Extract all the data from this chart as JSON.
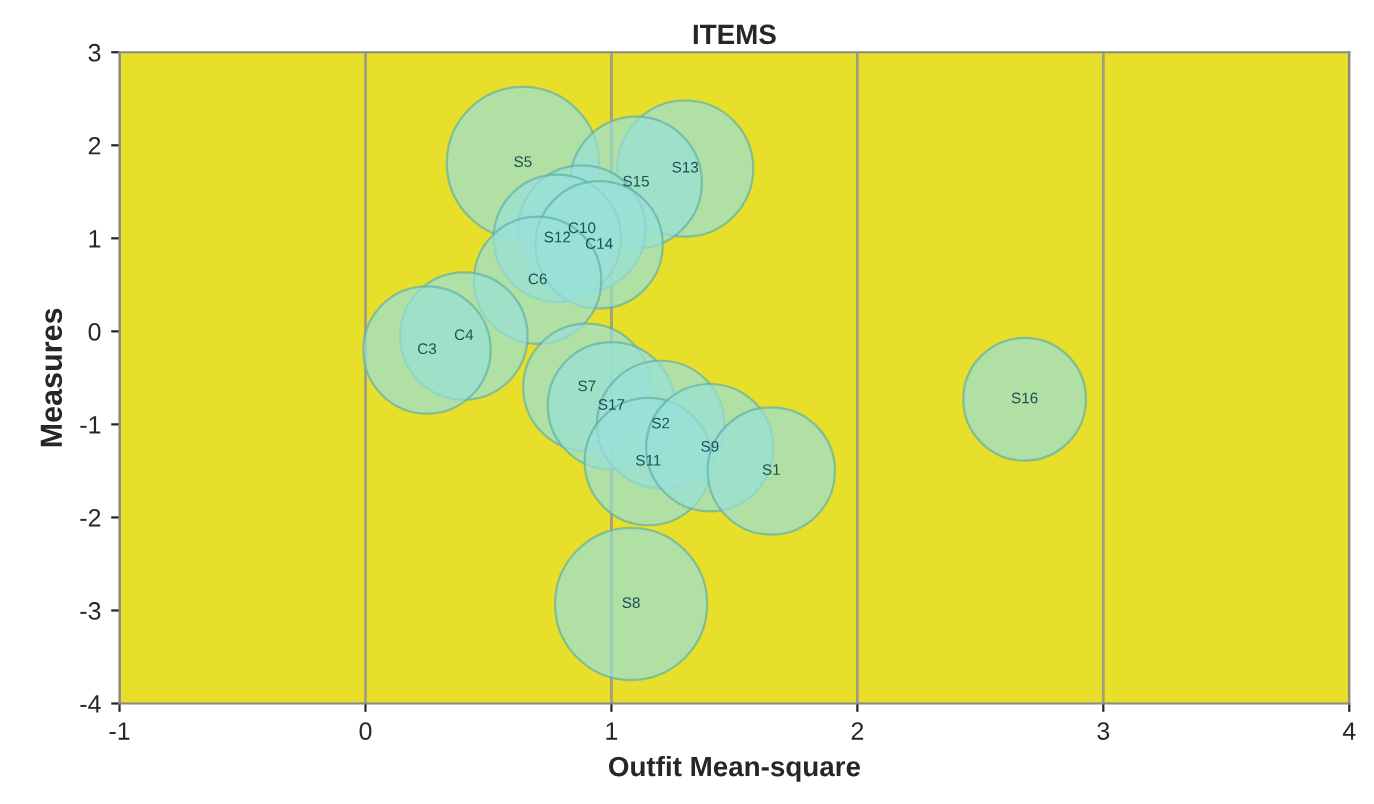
{
  "chart_data": {
    "type": "bubble",
    "title": "ITEMS",
    "xlabel": "Outfit Mean-square",
    "ylabel": "Measures",
    "x": [
      0.64,
      1.1,
      1.3,
      0.88,
      0.78,
      0.95,
      0.7,
      0.4,
      0.25,
      0.9,
      1.0,
      1.2,
      1.15,
      1.4,
      1.65,
      2.68,
      1.08
    ],
    "series": [
      {
        "color": "#99dfd8",
        "values": [
          1.81,
          1.6,
          1.75,
          1.1,
          1.0,
          0.93,
          0.55,
          -0.05,
          -0.2,
          -0.6,
          -0.8,
          -1.0,
          -1.4,
          -1.25,
          -1.5,
          -0.73,
          -2.93
        ],
        "sizes": [
          1.0,
          0.75,
          0.8,
          0.7,
          0.7,
          0.7,
          0.7,
          0.7,
          0.7,
          0.7,
          0.7,
          0.7,
          0.7,
          0.7,
          0.7,
          0.65,
          1.0
        ]
      }
    ],
    "annotations": [
      {
        "text": "S5",
        "x": 0.64,
        "y": 1.81
      },
      {
        "text": "S15",
        "x": 1.1,
        "y": 1.6
      },
      {
        "text": "S13",
        "x": 1.3,
        "y": 1.75
      },
      {
        "text": "C10",
        "x": 0.88,
        "y": 1.1
      },
      {
        "text": "S12",
        "x": 0.78,
        "y": 1.0
      },
      {
        "text": "C14",
        "x": 0.95,
        "y": 0.93
      },
      {
        "text": "C6",
        "x": 0.7,
        "y": 0.55
      },
      {
        "text": "C4",
        "x": 0.4,
        "y": -0.05
      },
      {
        "text": "C3",
        "x": 0.25,
        "y": -0.2
      },
      {
        "text": "S7",
        "x": 0.9,
        "y": -0.6
      },
      {
        "text": "S17",
        "x": 1.0,
        "y": -0.8
      },
      {
        "text": "S2",
        "x": 1.2,
        "y": -1.0
      },
      {
        "text": "S11",
        "x": 1.15,
        "y": -1.4
      },
      {
        "text": "S9",
        "x": 1.4,
        "y": -1.25
      },
      {
        "text": "S1",
        "x": 1.65,
        "y": -1.5
      },
      {
        "text": "S16",
        "x": 2.68,
        "y": -0.73
      },
      {
        "text": "S8",
        "x": 1.08,
        "y": -2.93
      }
    ],
    "xlim": [
      -1,
      4
    ],
    "xticks": [
      -1,
      0,
      1,
      2,
      3,
      4
    ],
    "ylim": [
      -4,
      3
    ],
    "yticks": [
      -4,
      -3,
      -2,
      -1,
      0,
      1,
      2,
      3
    ],
    "grid": "x",
    "legend": false
  }
}
